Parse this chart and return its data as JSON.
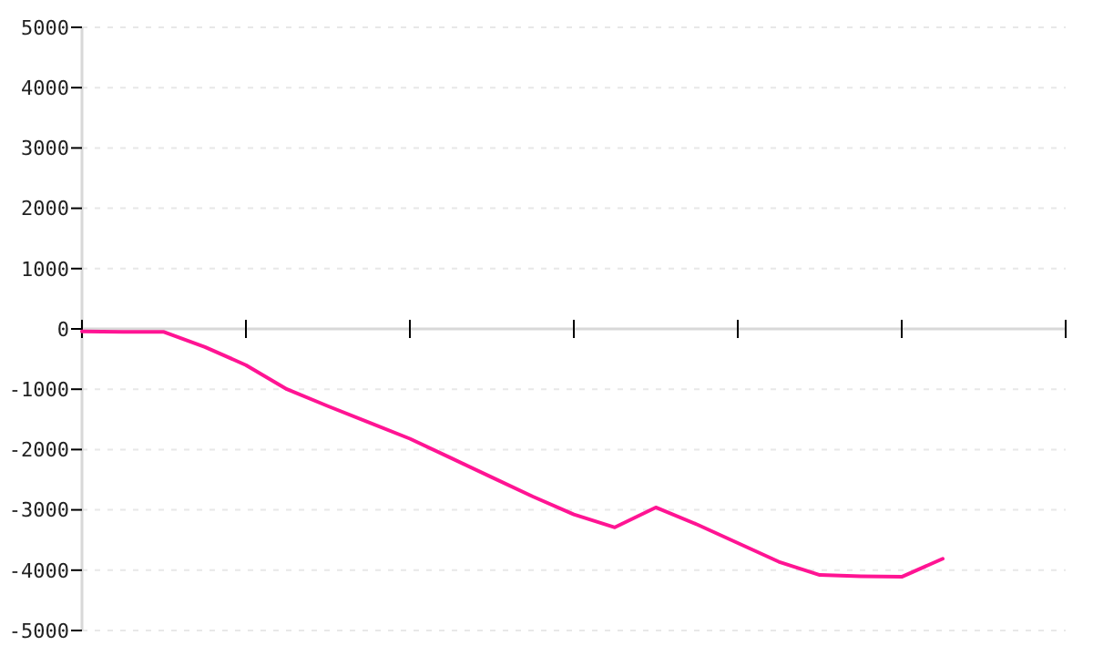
{
  "chart_data": {
    "type": "line",
    "categories": [
      null,
      null,
      null,
      null,
      null,
      null,
      null,
      null,
      null,
      null,
      null,
      null,
      null,
      null,
      null,
      null,
      null,
      null,
      null,
      null,
      null,
      null,
      null,
      null,
      null
    ],
    "series": [
      {
        "color": "#ff1493",
        "values": [
          -40,
          -50,
          -50,
          -300,
          -600,
          -1000,
          -1280,
          -1550,
          -1820,
          -2140,
          -2460,
          -2780,
          -3075,
          -3290,
          -2960,
          -3240,
          -3550,
          -3860,
          -4080,
          -4100,
          -4110,
          -3810,
          null,
          null,
          null
        ]
      }
    ],
    "ylim": [
      -5000,
      5000
    ],
    "yticks": [
      -5000,
      -4000,
      -3000,
      -2000,
      -1000,
      0,
      1000,
      2000,
      3000,
      4000,
      5000
    ],
    "grid": "y",
    "marker": "none",
    "line_style": "solid"
  }
}
